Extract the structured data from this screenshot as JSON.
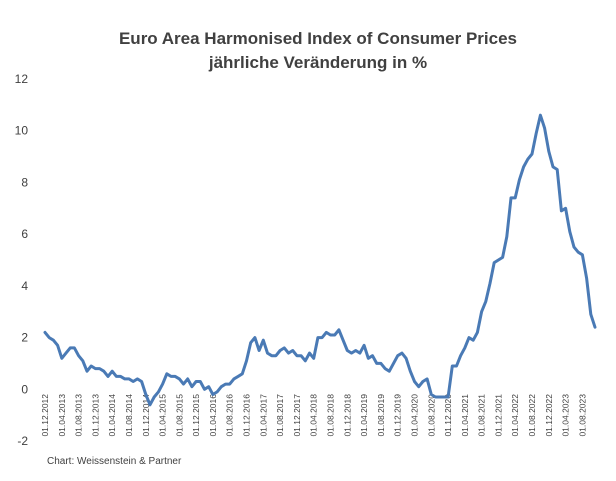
{
  "chart_data": {
    "type": "line",
    "title": "Euro Area Harmonised Index of Consumer Prices",
    "subtitle": "jährliche Veränderung in %",
    "credit": "Chart: Weissenstein & Partner",
    "line_color": "#4a7ab5",
    "ylim": [
      -2,
      12
    ],
    "yticks": [
      -2,
      0,
      2,
      4,
      6,
      8,
      10,
      12
    ],
    "grid": false,
    "x_tick_labels": [
      "01.12.2012",
      "01.04.2013",
      "01.08.2013",
      "01.12.2013",
      "01.04.2014",
      "01.08.2014",
      "01.12.2014",
      "01.04.2015",
      "01.08.2015",
      "01.12.2015",
      "01.04.2016",
      "01.08.2016",
      "01.12.2016",
      "01.04.2017",
      "01.08.2017",
      "01.12.2017",
      "01.04.2018",
      "01.08.2018",
      "01.12.2018",
      "01.04.2019",
      "01.08.2019",
      "01.12.2019",
      "01.04.2020",
      "01.08.2020",
      "01.12.2020",
      "01.04.2021",
      "01.08.2021",
      "01.12.2021",
      "01.04.2022",
      "01.08.2022",
      "01.12.2022",
      "01.04.2023",
      "01.08.2023"
    ],
    "series": [
      {
        "start": "2012-12",
        "values": [
          2.2,
          2.0,
          1.9,
          1.7,
          1.2,
          1.4,
          1.6,
          1.6,
          1.3,
          1.1,
          0.7,
          0.9,
          0.8,
          0.8,
          0.7,
          0.5,
          0.7,
          0.5,
          0.5,
          0.4,
          0.4,
          0.3,
          0.4,
          0.3,
          -0.2,
          -0.6,
          -0.3,
          -0.1,
          0.2,
          0.6,
          0.5,
          0.5,
          0.4,
          0.2,
          0.4,
          0.1,
          0.3,
          0.3,
          0.0,
          0.1,
          -0.2,
          -0.1,
          0.1,
          0.2,
          0.2,
          0.4,
          0.5,
          0.6,
          1.1,
          1.8,
          2.0,
          1.5,
          1.9,
          1.4,
          1.3,
          1.3,
          1.5,
          1.6,
          1.4,
          1.5,
          1.3,
          1.3,
          1.1,
          1.4,
          1.2,
          2.0,
          2.0,
          2.2,
          2.1,
          2.1,
          2.3,
          1.9,
          1.5,
          1.4,
          1.5,
          1.4,
          1.7,
          1.2,
          1.3,
          1.0,
          1.0,
          0.8,
          0.7,
          1.0,
          1.3,
          1.4,
          1.2,
          0.7,
          0.3,
          0.1,
          0.3,
          0.4,
          -0.2,
          -0.3,
          -0.3,
          -0.3,
          -0.3,
          0.9,
          0.9,
          1.3,
          1.6,
          2.0,
          1.9,
          2.2,
          3.0,
          3.4,
          4.1,
          4.9,
          5.0,
          5.1,
          5.9,
          7.4,
          7.4,
          8.1,
          8.6,
          8.9,
          9.1,
          9.9,
          10.6,
          10.1,
          9.2,
          8.6,
          8.5,
          6.9,
          7.0,
          6.1,
          5.5,
          5.3,
          5.2,
          4.3,
          2.9,
          2.4
        ]
      }
    ]
  }
}
